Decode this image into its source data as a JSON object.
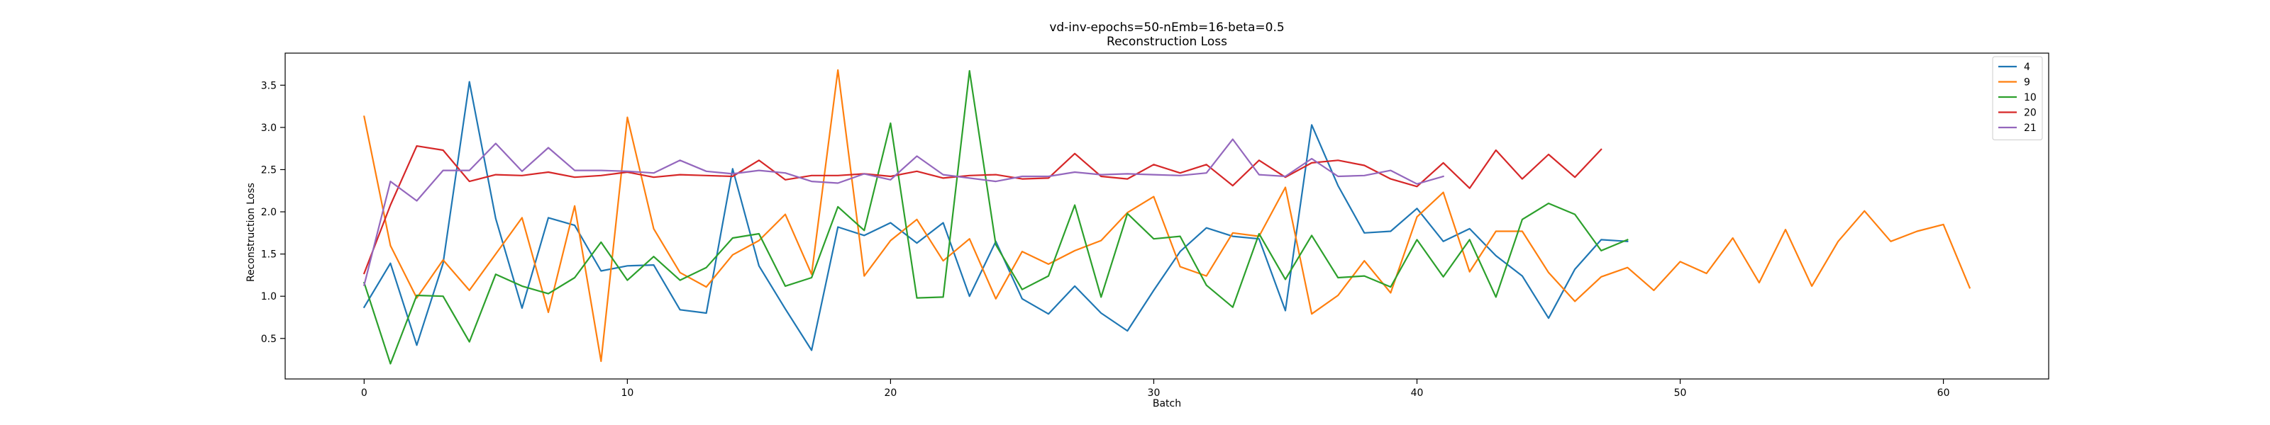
{
  "chart_data": {
    "type": "line",
    "title": "vd-inv-epochs=50-nEmb=16-beta=0.5",
    "subtitle": "Reconstruction Loss",
    "xlabel": "Batch",
    "ylabel": "Reconstruction Loss",
    "xlim": [
      -3,
      64
    ],
    "ylim": [
      0.02,
      3.88
    ],
    "xticks": [
      0,
      10,
      20,
      30,
      40,
      50,
      60
    ],
    "yticks": [
      0.5,
      1.0,
      1.5,
      2.0,
      2.5,
      3.0,
      3.5
    ],
    "grid": false,
    "legend_position": "upper right",
    "series": [
      {
        "name": "4",
        "color": "#1f77b4",
        "values": [
          0.87,
          1.39,
          0.42,
          1.39,
          3.54,
          1.92,
          0.86,
          1.93,
          1.84,
          1.3,
          1.36,
          1.37,
          0.84,
          0.8,
          2.51,
          1.36,
          0.85,
          0.36,
          1.82,
          1.72,
          1.87,
          1.63,
          1.87,
          1.0,
          1.65,
          0.97,
          0.79,
          1.12,
          0.8,
          0.59,
          1.07,
          1.53,
          1.81,
          1.71,
          1.68,
          0.83,
          3.03,
          2.31,
          1.75,
          1.77,
          2.04,
          1.65,
          1.8,
          1.48,
          1.24,
          0.74,
          1.32,
          1.67,
          1.65
        ]
      },
      {
        "name": "9",
        "color": "#ff7f0e",
        "values": [
          3.13,
          1.6,
          0.98,
          1.43,
          1.07,
          1.5,
          1.93,
          0.81,
          2.07,
          0.23,
          3.12,
          1.8,
          1.28,
          1.11,
          1.49,
          1.66,
          1.97,
          1.26,
          3.68,
          1.24,
          1.66,
          1.91,
          1.42,
          1.68,
          0.97,
          1.53,
          1.38,
          1.54,
          1.66,
          1.99,
          2.18,
          1.35,
          1.24,
          1.75,
          1.71,
          2.29,
          0.79,
          1.01,
          1.42,
          1.04,
          1.94,
          2.23,
          1.29,
          1.77,
          1.77,
          1.28,
          0.94,
          1.23,
          1.34,
          1.07,
          1.41,
          1.27,
          1.69,
          1.16,
          1.79,
          1.12,
          1.65,
          2.01,
          1.65,
          1.77,
          1.85,
          1.1
        ]
      },
      {
        "name": "10",
        "color": "#2ca02c",
        "values": [
          1.16,
          0.2,
          1.01,
          1.0,
          0.46,
          1.26,
          1.12,
          1.03,
          1.22,
          1.64,
          1.19,
          1.47,
          1.19,
          1.34,
          1.69,
          1.74,
          1.12,
          1.22,
          2.06,
          1.78,
          3.05,
          0.98,
          0.99,
          3.67,
          1.61,
          1.08,
          1.24,
          2.08,
          0.99,
          1.98,
          1.68,
          1.71,
          1.13,
          0.87,
          1.74,
          1.2,
          1.72,
          1.22,
          1.24,
          1.11,
          1.67,
          1.23,
          1.67,
          0.99,
          1.91,
          2.1,
          1.97,
          1.54,
          1.67
        ]
      },
      {
        "name": "20",
        "color": "#d62728",
        "values": [
          1.27,
          2.08,
          2.78,
          2.73,
          2.36,
          2.44,
          2.43,
          2.47,
          2.41,
          2.43,
          2.47,
          2.41,
          2.44,
          2.43,
          2.42,
          2.61,
          2.38,
          2.43,
          2.43,
          2.45,
          2.42,
          2.48,
          2.4,
          2.43,
          2.44,
          2.39,
          2.4,
          2.69,
          2.42,
          2.39,
          2.56,
          2.46,
          2.56,
          2.31,
          2.61,
          2.41,
          2.58,
          2.61,
          2.55,
          2.39,
          2.3,
          2.58,
          2.28,
          2.73,
          2.39,
          2.68,
          2.41,
          2.74
        ]
      },
      {
        "name": "21",
        "color": "#9467bd",
        "values": [
          1.13,
          2.36,
          2.13,
          2.49,
          2.49,
          2.81,
          2.48,
          2.76,
          2.49,
          2.49,
          2.48,
          2.46,
          2.61,
          2.48,
          2.45,
          2.49,
          2.46,
          2.36,
          2.34,
          2.45,
          2.38,
          2.66,
          2.44,
          2.4,
          2.36,
          2.42,
          2.42,
          2.47,
          2.44,
          2.45,
          2.44,
          2.43,
          2.46,
          2.86,
          2.44,
          2.42,
          2.63,
          2.42,
          2.43,
          2.49,
          2.33,
          2.42
        ]
      }
    ]
  }
}
